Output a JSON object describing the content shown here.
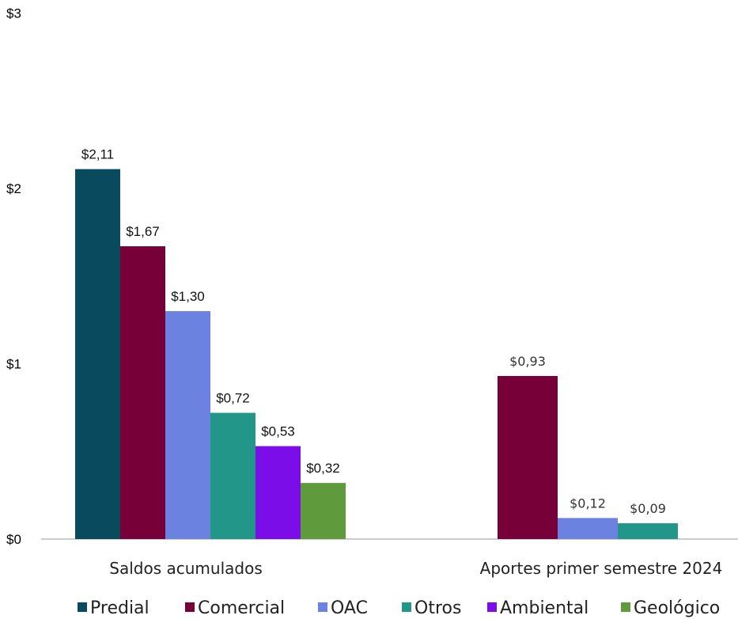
{
  "chart_data": {
    "type": "bar",
    "categories": [
      "Saldos acumulados",
      "Aportes primer semestre 2024"
    ],
    "y_ticks": [
      "$0",
      "$1",
      "$2",
      "$3"
    ],
    "ylim": [
      0,
      3
    ],
    "grid": false,
    "legend_position": "bottom",
    "series": [
      {
        "name": "Predial",
        "color": "#0a4a5e",
        "values": [
          2.11,
          null
        ],
        "labels": [
          "$2,11",
          ""
        ]
      },
      {
        "name": "Comercial",
        "color": "#780038",
        "values": [
          1.67,
          0.93
        ],
        "labels": [
          "$1,67",
          "$0,93"
        ]
      },
      {
        "name": "OAC",
        "color": "#6b82e0",
        "values": [
          1.3,
          0.12
        ],
        "labels": [
          "$1,30",
          "$0,12"
        ]
      },
      {
        "name": "Otros",
        "color": "#23968a",
        "values": [
          0.72,
          0.09
        ],
        "labels": [
          "$0,72",
          "$0,09"
        ]
      },
      {
        "name": "Ambiental",
        "color": "#7b0de8",
        "values": [
          0.53,
          null
        ],
        "labels": [
          "$0,53",
          ""
        ]
      },
      {
        "name": "Geológico",
        "color": "#5f9a3c",
        "values": [
          0.32,
          null
        ],
        "labels": [
          "$0,32",
          ""
        ]
      }
    ]
  }
}
